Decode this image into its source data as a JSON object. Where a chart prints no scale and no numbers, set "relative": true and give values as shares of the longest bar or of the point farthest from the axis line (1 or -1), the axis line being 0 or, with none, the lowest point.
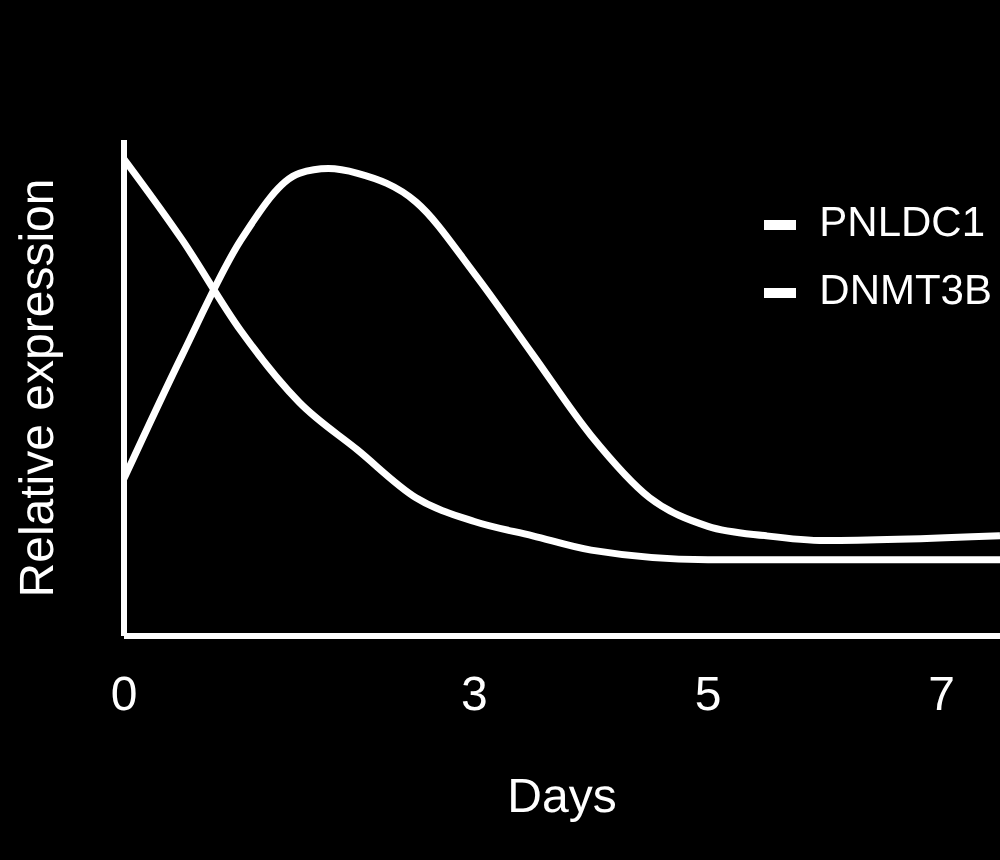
{
  "chart_data": {
    "type": "line",
    "xlabel": "Days",
    "ylabel": "Relative expression",
    "relative": true,
    "xlim": [
      0,
      7.5
    ],
    "xticks": [
      0,
      3,
      5,
      7
    ],
    "legend": "top right",
    "series": [
      {
        "name": "PNLDC1",
        "color": "#ffffff",
        "x": [
          0,
          0.5,
          1,
          1.5,
          1.75,
          2,
          2.5,
          3,
          3.5,
          4,
          4.5,
          5,
          5.5,
          6,
          7.5
        ],
        "values": [
          0.33,
          0.59,
          0.83,
          0.97,
          0.98,
          0.97,
          0.91,
          0.76,
          0.59,
          0.42,
          0.29,
          0.23,
          0.21,
          0.2,
          0.21
        ]
      },
      {
        "name": "DNMT3B",
        "color": "#ffffff",
        "x": [
          0,
          0.5,
          1,
          1.5,
          2,
          2.5,
          3,
          3.5,
          4,
          5,
          6,
          7.5
        ],
        "values": [
          1,
          0.83,
          0.64,
          0.49,
          0.39,
          0.29,
          0.24,
          0.21,
          0.18,
          0.16,
          0.16,
          0.16
        ]
      }
    ]
  }
}
